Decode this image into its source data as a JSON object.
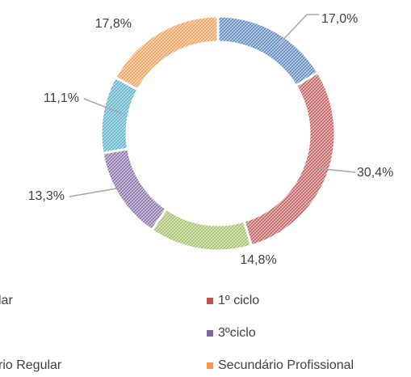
{
  "chart_data": {
    "type": "donut",
    "categories": [
      "lar",
      "1º ciclo",
      null,
      "3ºciclo",
      "rio Regular",
      "Secundário Profissional"
    ],
    "order": [
      0,
      1,
      2,
      3,
      4,
      5
    ],
    "values": [
      17.0,
      30.4,
      14.8,
      13.3,
      11.1,
      17.8
    ],
    "value_labels": [
      "17,0%",
      "30,4%",
      "14,8%",
      "13,3%",
      "11,1%",
      "17,8%"
    ],
    "colors": [
      "#4f81bd",
      "#c0504d",
      "#9bbb59",
      "#8064a2",
      "#4bacc6",
      "#f79646"
    ]
  }
}
